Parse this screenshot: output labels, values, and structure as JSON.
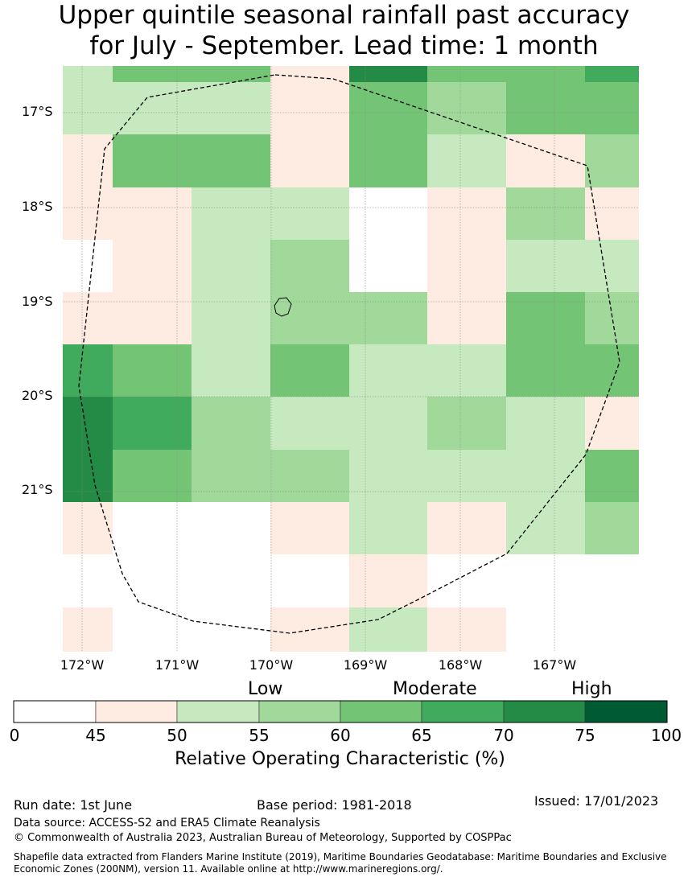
{
  "title": {
    "line1": "Upper quintile seasonal rainfall past accuracy",
    "line2": "for July - September. Lead time: 1 month"
  },
  "map": {
    "lat_labels": [
      "17°S",
      "18°S",
      "19°S",
      "20°S",
      "21°S"
    ],
    "lon_labels": [
      "172°W",
      "171°W",
      "170°W",
      "169°W",
      "168°W",
      "167°W"
    ],
    "level_colors": [
      "#ffffff",
      "#feebe2",
      "#c7e9c0",
      "#a1d99b",
      "#74c476",
      "#41ab5d",
      "#238b45",
      "#005a32"
    ],
    "grid_levels": [
      [
        2,
        4,
        4,
        1,
        6,
        4,
        4,
        5
      ],
      [
        2,
        2,
        2,
        1,
        4,
        3,
        4,
        4
      ],
      [
        1,
        4,
        4,
        1,
        4,
        2,
        1,
        3
      ],
      [
        1,
        1,
        2,
        2,
        0,
        1,
        3,
        1
      ],
      [
        0,
        1,
        2,
        3,
        0,
        1,
        2,
        2
      ],
      [
        1,
        1,
        2,
        3,
        3,
        1,
        4,
        3
      ],
      [
        5,
        4,
        2,
        4,
        2,
        2,
        4,
        4
      ],
      [
        6,
        5,
        3,
        2,
        2,
        3,
        2,
        1
      ],
      [
        6,
        4,
        3,
        3,
        2,
        2,
        2,
        4
      ],
      [
        1,
        0,
        0,
        1,
        2,
        1,
        2,
        3
      ],
      [
        0,
        0,
        0,
        0,
        1,
        0,
        0,
        0
      ],
      [
        1,
        0,
        0,
        1,
        2,
        1,
        0,
        0
      ]
    ]
  },
  "colorbar": {
    "category_labels": {
      "low": "Low",
      "moderate": "Moderate",
      "high": "High"
    },
    "ticks": [
      "0",
      "45",
      "50",
      "55",
      "60",
      "65",
      "70",
      "75",
      "100"
    ],
    "label": "Relative Operating Characteristic (%)"
  },
  "footer": {
    "run_date": "Run date: 1st June",
    "base_period": "Base period: 1981-2018",
    "issued": "Issued: 17/01/2023",
    "data_source": "Data source: ACCESS-S2 and ERA5 Climate Reanalysis",
    "copyright": "© Commonwealth of Australia 2023, Australian Bureau of Meteorology, Supported by COSPPac",
    "shapefile_line1": "Shapefile data extracted from Flanders Marine Institute (2019), Maritime Boundaries Geodatabase: Maritime Boundaries and Exclusive",
    "shapefile_line2": "Economic Zones (200NM), version 11. Available online at http://www.marineregions.org/."
  }
}
